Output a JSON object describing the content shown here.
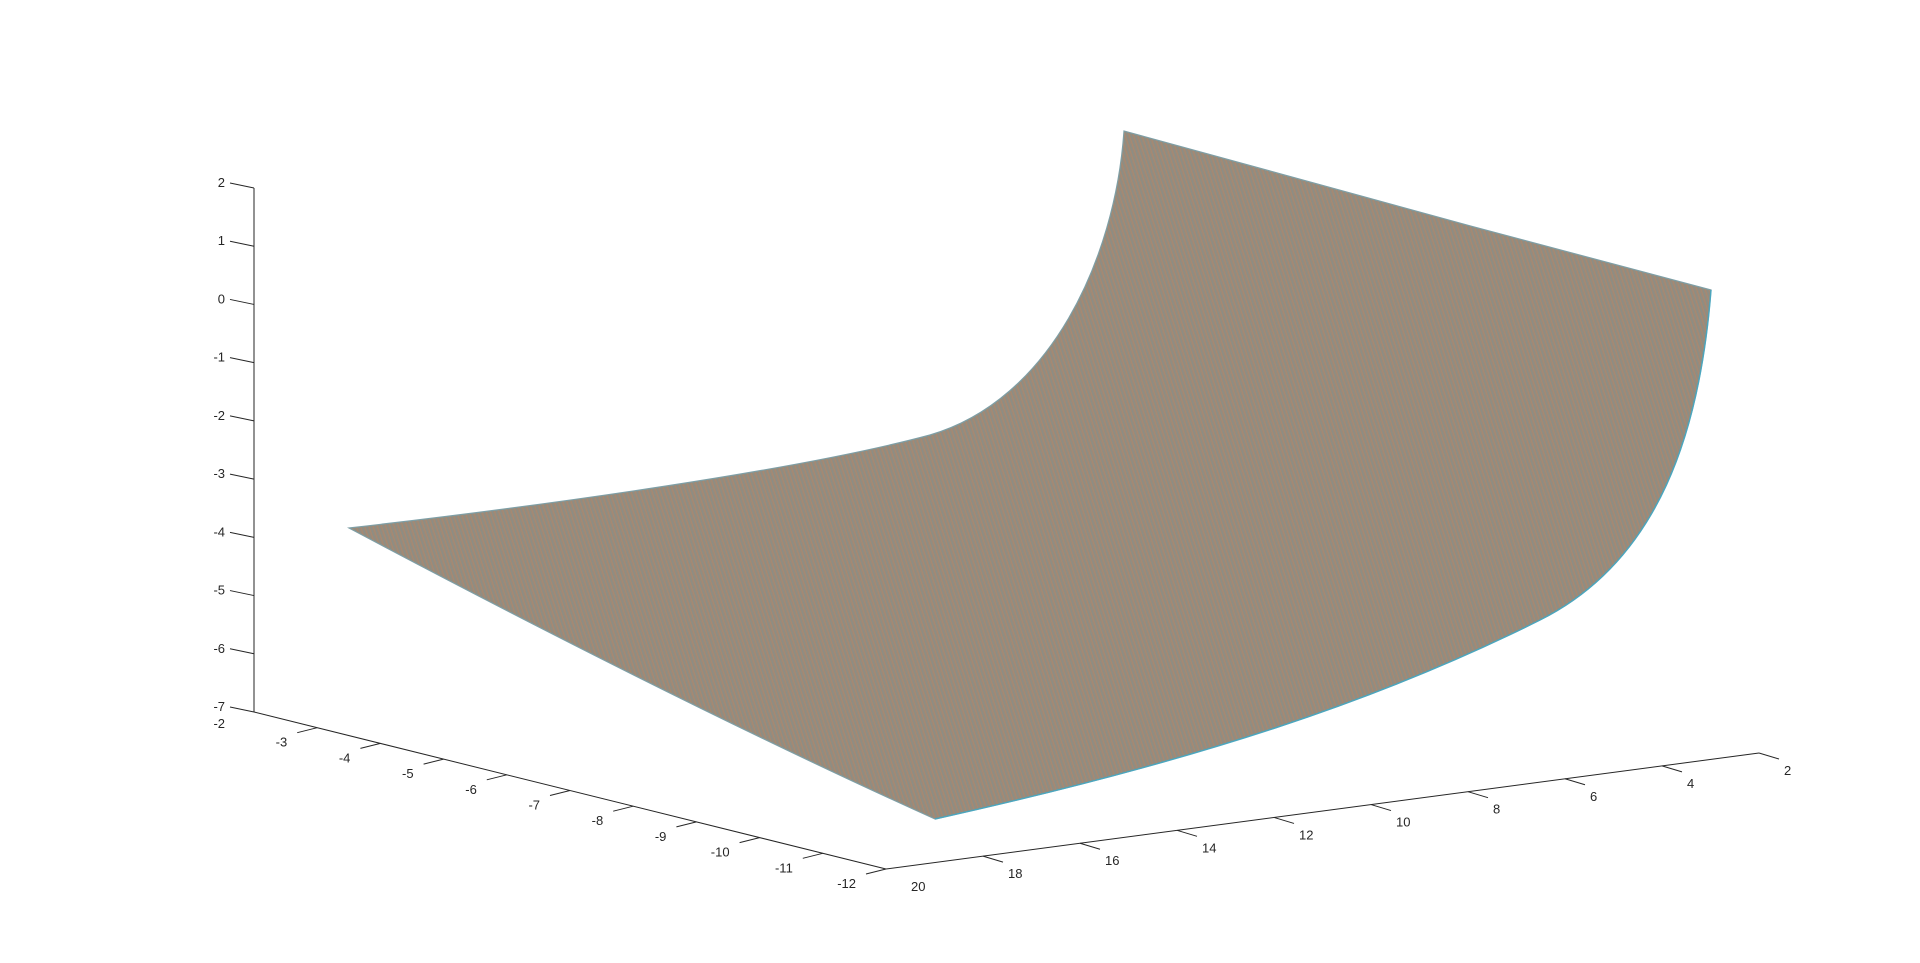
{
  "chart_data": {
    "type": "surface",
    "title": "",
    "xlabel": "",
    "ylabel": "",
    "zlabel": "",
    "grid": false,
    "colors": {
      "surface_fill": "#9a8a7a",
      "edge_orange": "#d9824a",
      "edge_blue": "#3fa7c4",
      "axis": "#262626"
    },
    "axes": {
      "z": {
        "range": [
          -7,
          2
        ],
        "ticks": [
          2,
          1,
          0,
          -1,
          -2,
          -3,
          -4,
          -5,
          -6,
          -7
        ],
        "tick_labels": [
          "2",
          "1",
          "0",
          "-1",
          "-2",
          "-3",
          "-4",
          "-5",
          "-6",
          "-7"
        ]
      },
      "y": {
        "range": [
          -12,
          -2
        ],
        "ticks": [
          -2,
          -3,
          -4,
          -5,
          -6,
          -7,
          -8,
          -9,
          -10,
          -11,
          -12
        ],
        "tick_labels": [
          "-2",
          "-3",
          "-4",
          "-5",
          "-6",
          "-7",
          "-8",
          "-9",
          "-10",
          "-11",
          "-12"
        ]
      },
      "x": {
        "range": [
          2,
          20
        ],
        "ticks": [
          2,
          4,
          6,
          8,
          10,
          12,
          14,
          16,
          18,
          20
        ],
        "tick_labels": [
          "2",
          "4",
          "6",
          "8",
          "10",
          "12",
          "14",
          "16",
          "18",
          "20"
        ]
      }
    },
    "surface_corners": [
      {
        "x": 2,
        "y": -2,
        "z": 2
      },
      {
        "x": 2,
        "y": -12,
        "z": -0.5
      },
      {
        "x": 20,
        "y": -12,
        "z": -7
      },
      {
        "x": 20,
        "y": -2,
        "z": -4
      }
    ]
  }
}
